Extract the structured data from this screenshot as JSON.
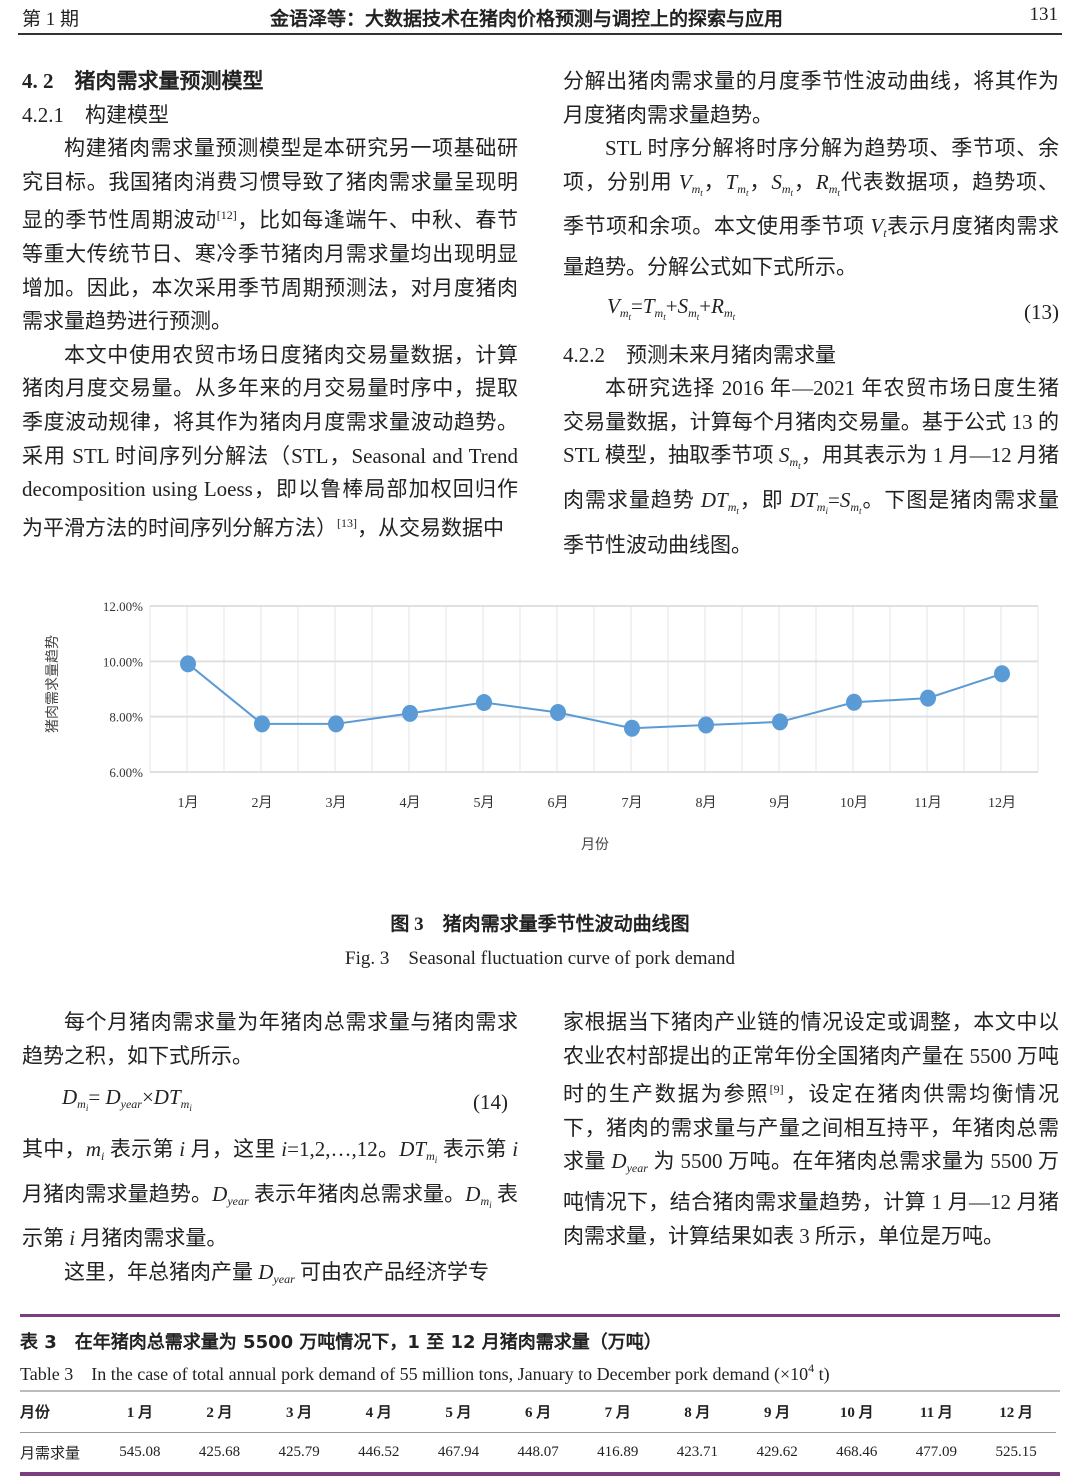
{
  "header": {
    "issue": "第 1 期",
    "title": "金语泽等：大数据技术在猪肉价格预测与调控上的探索与应用",
    "page": "131"
  },
  "left_top": {
    "h1": "4. 2　猪肉需求量预测模型",
    "h2": "4.2.1　构建模型",
    "p1": [
      "构建猪肉需求量预测模型是本研究另一项基础研究目标。我国猪肉消费习惯导致了猪肉需求量呈现明显的季节性周期波动",
      {
        "sup": "[12]"
      },
      "，比如每逢端午、中秋、春节等重大传统节日、寒冷季节猪肉月需求量均出现明显增加。因此，本次采用季节周期预测法，对月度猪肉需求量趋势进行预测。"
    ],
    "p2": [
      "本文中使用农贸市场日度猪肉交易量数据，计算猪肉月度交易量。从多年来的月交易量时序中，提取季度波动规律，将其作为猪肉月度需求量波动趋势。采用 STL 时间序列分解法（STL，Seasonal and Trend decomposition using Loess，即以鲁棒局部加权回归作为平滑方法的时间序列分解方法）",
      {
        "sup": "[13]"
      },
      "，从交易数据中"
    ]
  },
  "right_top": {
    "p0": [
      "分解出猪肉需求量的月度季节性波动曲线，将其作为月度猪肉需求量趋势。"
    ],
    "p1": [
      "STL 时序分解将时序分解为趋势项、季节项、余项，分别用 ",
      {
        "v": "V",
        "sub": "m",
        "subsub": "t"
      },
      "，",
      {
        "v": "T",
        "sub": "m",
        "subsub": "t"
      },
      "，",
      {
        "v": "S",
        "sub": "m",
        "subsub": "t"
      },
      "，",
      {
        "v": "R",
        "sub": "m",
        "subsub": "t"
      },
      "代表数据项，趋势项、季节项和余项。本文使用季节项 ",
      {
        "v": "V",
        "sub": "t"
      },
      "表示月度猪肉需求量趋势。分解公式如下式所示。"
    ],
    "formula": [
      {
        "v": "V",
        "sub": "m",
        "subsub": "t"
      },
      "=",
      {
        "v": "T",
        "sub": "m",
        "subsub": "t"
      },
      "+",
      {
        "v": "S",
        "sub": "m",
        "subsub": "t"
      },
      "+",
      {
        "v": "R",
        "sub": "m",
        "subsub": "t"
      }
    ],
    "formula_no": "(13)",
    "h": "4.2.2　预测未来月猪肉需求量",
    "p2": [
      "本研究选择 2016 年—2021 年农贸市场日度生猪交易量数据，计算每个月猪肉交易量。基于公式 13 的 STL 模型，抽取季节项 ",
      {
        "v": "S",
        "sub": "m",
        "subsub": "t"
      },
      "，用其表示为 1 月—12 月猪肉需求量趋势 ",
      {
        "v": "DT",
        "sub": "m",
        "subsub": "t"
      },
      "，即 ",
      {
        "v": "DT",
        "sub": "m",
        "subsub": "i"
      },
      "=",
      {
        "v": "S",
        "sub": "m",
        "subsub": "t"
      },
      "。下图是猪肉需求量季节性波动曲线图。"
    ]
  },
  "chart_data": {
    "type": "line",
    "categories": [
      "1月",
      "2月",
      "3月",
      "4月",
      "5月",
      "6月",
      "7月",
      "8月",
      "9月",
      "10月",
      "11月",
      "12月"
    ],
    "values": [
      9.91,
      7.74,
      7.74,
      8.12,
      8.51,
      8.15,
      7.58,
      7.7,
      7.81,
      8.52,
      8.67,
      9.55
    ],
    "y_ticks": [
      "6.00%",
      "8.00%",
      "10.00%",
      "12.00%"
    ],
    "ylim": [
      6,
      12
    ],
    "ylabel": "猪肉需求量趋势",
    "xlabel": "月份",
    "grid": true,
    "color": "#5b9bd5"
  },
  "figure": {
    "caption_cn": "图 3　猪肉需求量季节性波动曲线图",
    "caption_en": "Fig. 3　Seasonal fluctuation curve of pork demand"
  },
  "left_bottom": {
    "p1": [
      "每个月猪肉需求量为年猪肉总需求量与猪肉需求趋势之积，如下式所示。"
    ],
    "formula": [
      {
        "v": "D",
        "sub": "m",
        "subsub": "i"
      },
      "= ",
      {
        "v": "D",
        "sub": "year"
      },
      "×",
      {
        "v": "DT",
        "sub": "m",
        "subsub": "i"
      }
    ],
    "formula_no": "(14)",
    "p2": [
      "其中，",
      {
        "v": "m",
        "sub": "i"
      },
      " 表示第 ",
      {
        "v": "i"
      },
      " 月，这里 ",
      {
        "v": "i"
      },
      "=1,2,…,12。",
      {
        "v": "DT",
        "sub": "m",
        "subsub": "i"
      },
      " 表示第 ",
      {
        "v": "i"
      },
      " 月猪肉需求量趋势。",
      {
        "v": "D",
        "sub": "year"
      },
      " 表示年猪肉总需求量。",
      {
        "v": "D",
        "sub": "m",
        "subsub": "i"
      },
      " 表示第 ",
      {
        "v": "i"
      },
      " 月猪肉需求量。"
    ],
    "p3": [
      "这里，年总猪肉产量 ",
      {
        "v": "D",
        "sub": "year"
      },
      " 可由农产品经济学专"
    ]
  },
  "right_bottom": {
    "p1": [
      "家根据当下猪肉产业链的情况设定或调整，本文中以农业农村部提出的正常年份全国猪肉产量在 5500 万吨时的生产数据为参照",
      {
        "sup": "[9]"
      },
      "，设定在猪肉供需均衡情况下，猪肉的需求量与产量之间相互持平，年猪肉总需求量 ",
      {
        "v": "D",
        "sub": "year"
      },
      " 为 5500 万吨。在年猪肉总需求量为 5500 万吨情况下，结合猪肉需求量趋势，计算 1 月—12 月猪肉需求量，计算结果如表 3 所示，单位是万吨。"
    ]
  },
  "table": {
    "title_cn": "表 3　在年猪肉总需求量为 5500 万吨情况下，1 至 12 月猪肉需求量（万吨）",
    "title_en": [
      "Table 3　In the case of total annual pork demand of 55 million tons, January to December pork demand (×10",
      {
        "sup": "4"
      },
      " t)"
    ],
    "header": [
      "月份",
      "1 月",
      "2 月",
      "3 月",
      "4 月",
      "5 月",
      "6 月",
      "7 月",
      "8 月",
      "9 月",
      "10 月",
      "11 月",
      "12 月"
    ],
    "row": [
      "月需求量",
      "545.08",
      "425.68",
      "425.79",
      "446.52",
      "467.94",
      "448.07",
      "416.89",
      "423.71",
      "429.62",
      "468.46",
      "477.09",
      "525.15"
    ],
    "rule_color": "#7a3f7e"
  }
}
